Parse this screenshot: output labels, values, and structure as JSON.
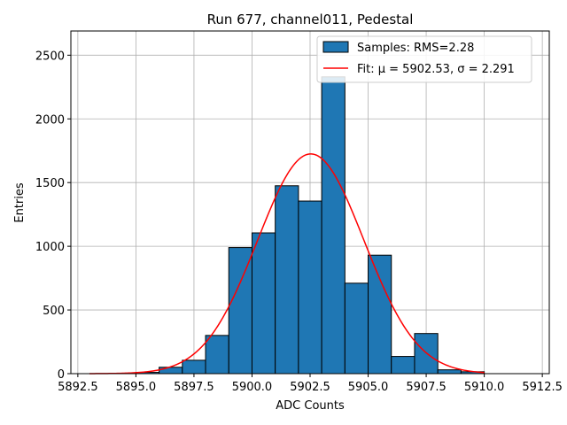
{
  "chart_data": {
    "type": "bar",
    "title": "Run 677, channel011, Pedestal",
    "xlabel": "ADC Counts",
    "ylabel": "Entries",
    "xlim": [
      5892.2,
      5912.8
    ],
    "ylim": [
      0,
      2690
    ],
    "grid": true,
    "legend_position": "top-right",
    "x_ticks": [
      5892.5,
      5895.0,
      5897.5,
      5900.0,
      5902.5,
      5905.0,
      5907.5,
      5910.0,
      5912.5
    ],
    "x_tick_labels": [
      "5892.5",
      "5895.0",
      "5897.5",
      "5900.0",
      "5902.5",
      "5905.0",
      "5907.5",
      "5910.0",
      "5912.5"
    ],
    "y_ticks": [
      0,
      500,
      1000,
      1500,
      2000,
      2500
    ],
    "y_tick_labels": [
      "0",
      "500",
      "1000",
      "1500",
      "2000",
      "2500"
    ],
    "series": [
      {
        "name": "Samples: RMS=2.28",
        "kind": "histogram",
        "bin_edges": [
          5895.0,
          5896.0,
          5897.0,
          5898.0,
          5899.0,
          5900.0,
          5901.0,
          5902.0,
          5903.0,
          5904.0,
          5905.0,
          5906.0,
          5907.0,
          5908.0,
          5909.0,
          5910.0
        ],
        "values": [
          10,
          50,
          105,
          300,
          990,
          1105,
          1475,
          1355,
          2330,
          710,
          930,
          135,
          315,
          30,
          15
        ],
        "color": "#1f77b4",
        "edge_color": "#000000"
      },
      {
        "name": "Fit: μ = 5902.53, σ = 2.291",
        "kind": "gaussian",
        "mu": 5902.53,
        "sigma": 2.291,
        "amplitude": 1725,
        "x_range": [
          5893.0,
          5910.0
        ],
        "color": "#ff0000"
      }
    ]
  }
}
